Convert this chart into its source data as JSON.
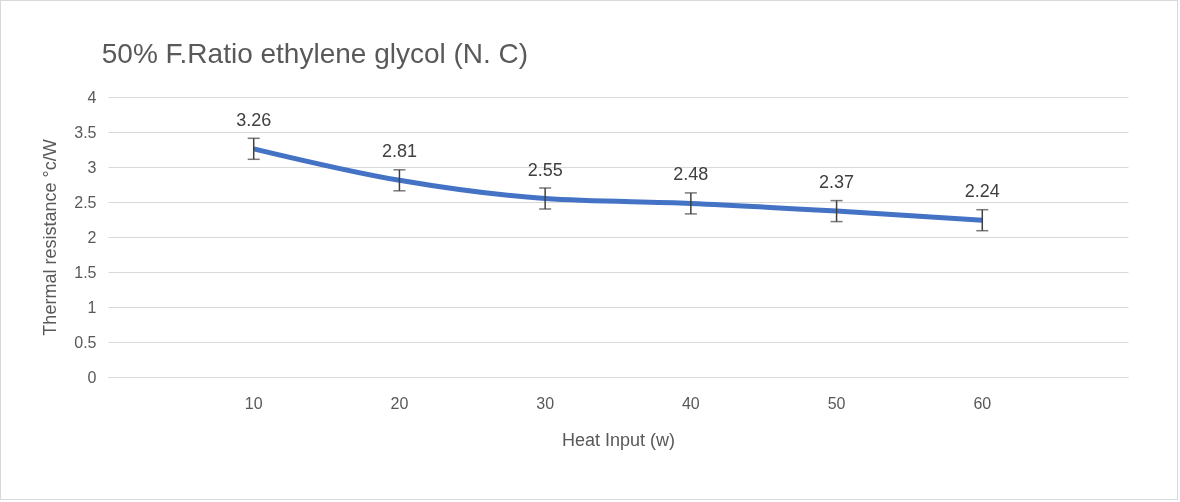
{
  "chart_data": {
    "type": "line",
    "title": "50% F.Ratio ethylene glycol (N. C)",
    "xlabel": "Heat Input (w)",
    "ylabel": "Thermal resistance °c/W",
    "categories": [
      "10",
      "20",
      "30",
      "40",
      "50",
      "60"
    ],
    "series": [
      {
        "color": "#4472c4",
        "values": [
          3.26,
          2.81,
          2.55,
          2.48,
          2.37,
          2.24
        ],
        "errors": [
          0.15,
          0.15,
          0.15,
          0.15,
          0.15,
          0.15
        ]
      }
    ],
    "ylim": [
      0,
      4
    ],
    "yticks": [
      0,
      0.5,
      1,
      1.5,
      2,
      2.5,
      3,
      3.5,
      4
    ],
    "grid": "y",
    "data_labels": true,
    "legend": false,
    "marker": "none",
    "line_style": "solid"
  }
}
